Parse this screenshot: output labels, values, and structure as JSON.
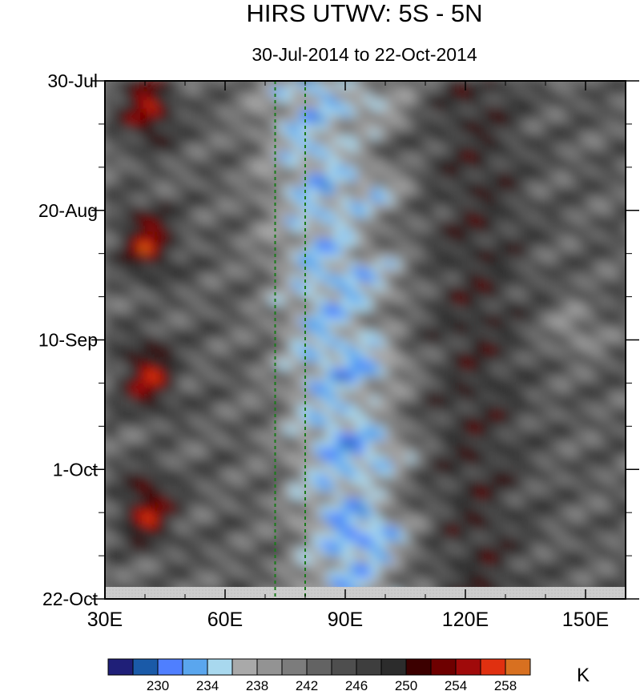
{
  "chart_data": {
    "type": "heatmap",
    "title": "HIRS UTWV: 5S - 5N",
    "subtitle": "30-Jul-2014 to 22-Oct-2014",
    "x_range": [
      30,
      160
    ],
    "x_ticks": [
      {
        "value": 30,
        "label": "30E"
      },
      {
        "value": 60,
        "label": "60E"
      },
      {
        "value": 90,
        "label": "90E"
      },
      {
        "value": 120,
        "label": "120E"
      },
      {
        "value": 150,
        "label": "150E"
      }
    ],
    "y_range": [
      "2014-07-30",
      "2014-10-22"
    ],
    "y_ticks": [
      {
        "value": "2014-07-30",
        "label": "30-Jul"
      },
      {
        "value": "2014-08-20",
        "label": "20-Aug"
      },
      {
        "value": "2014-09-10",
        "label": "10-Sep"
      },
      {
        "value": "2014-10-01",
        "label": "1-Oct"
      },
      {
        "value": "2014-10-22",
        "label": "22-Oct"
      }
    ],
    "reference_lines_x": [
      72.5,
      80
    ],
    "colorbar": {
      "unit": "K",
      "tick_labels": [
        "230",
        "234",
        "238",
        "242",
        "246",
        "250",
        "254",
        "258"
      ],
      "colors": [
        "#1f1f78",
        "#1a5aa8",
        "#4f7fff",
        "#5aa6ee",
        "#a8d8ee",
        "#a9a9a9",
        "#939393",
        "#7c7c7c",
        "#636363",
        "#4e4e4e",
        "#3e3e3e",
        "#2c2c2c",
        "#3c0000",
        "#6e0000",
        "#a00a0a",
        "#e03010",
        "#d87020"
      ]
    },
    "missing_color": "#cdcdcd"
  }
}
